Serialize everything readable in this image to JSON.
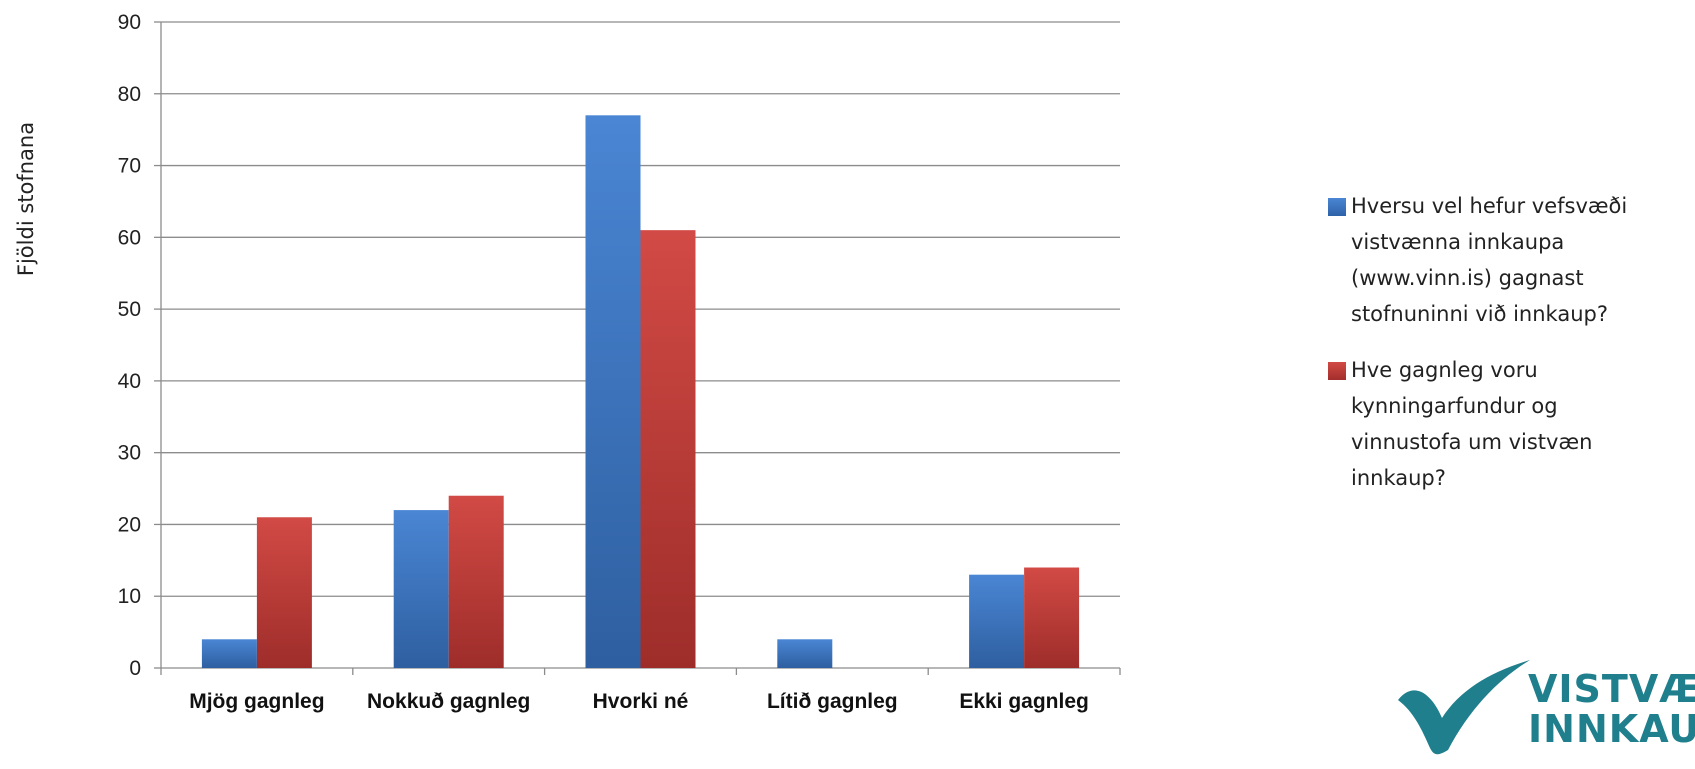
{
  "chart_data": {
    "type": "bar",
    "categories": [
      "Mjög gagnleg",
      "Nokkuð gagnleg",
      "Hvorki né",
      "Lítið gagnleg",
      "Ekki gagnleg"
    ],
    "series": [
      {
        "name": "Hversu vel hefur vefsvæði vistvænna innkaupa (www.vinn.is) gagnast stofnuninni við innkaup?",
        "values": [
          4,
          22,
          77,
          4,
          13
        ],
        "color": "#3d78c8"
      },
      {
        "name": "Hve gagnleg voru kynningarfundur og vinnustofa um vistvæn innkaup?",
        "values": [
          21,
          24,
          61,
          0,
          14
        ],
        "color": "#c63b37"
      }
    ],
    "ylabel": "Fjöldi stofnana",
    "xlabel": "",
    "ylim": [
      0,
      90
    ],
    "yticks": [
      0,
      10,
      20,
      30,
      40,
      50,
      60,
      70,
      80,
      90
    ],
    "grid": true,
    "legend": "right"
  },
  "legend": {
    "items": [
      "Hversu vel hefur vefsvæði vistvænna innkaupa (www.vinn.is) gagnast stofnuninni við innkaup?",
      "Hve gagnleg voru kynningarfundur og vinnustofa um vistvæn innkaup?"
    ]
  },
  "logo": {
    "line1": "VISTVÆ",
    "line2": "INNKAU",
    "icon": "checkmark-icon",
    "color": "#1f7f8c"
  }
}
